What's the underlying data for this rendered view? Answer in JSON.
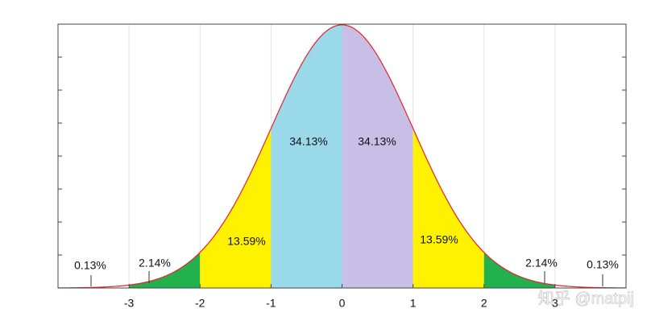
{
  "chart_data": {
    "type": "normal-regions",
    "mean": 0,
    "sd": 1,
    "xlim": [
      -4,
      4
    ],
    "xticks": [
      -3,
      -2,
      -1,
      0,
      1,
      2,
      3
    ],
    "ylim": [
      0,
      0.4
    ],
    "yticks": [
      0,
      0.05,
      0.1,
      0.15,
      0.2,
      0.25,
      0.3,
      0.35,
      0.4
    ],
    "grid": true,
    "curve_color": "#e8202a",
    "regions": {
      "bounds": [
        -4,
        -3,
        -2,
        -1,
        0,
        1,
        2,
        3,
        4
      ],
      "values": [
        0.13,
        2.14,
        13.59,
        34.13,
        34.13,
        13.59,
        2.14,
        0.13
      ],
      "value_labels": [
        "0.13%",
        "2.14%",
        "13.59%",
        "34.13%",
        "34.13%",
        "13.59%",
        "2.14%",
        "0.13%"
      ],
      "colors": [
        "#ffffff",
        "#22b14c",
        "#fff200",
        "#99d9ea",
        "#c8bfe7",
        "#fff200",
        "#22b14c",
        "#ffffff"
      ]
    },
    "watermark": "知乎 @matpij"
  }
}
